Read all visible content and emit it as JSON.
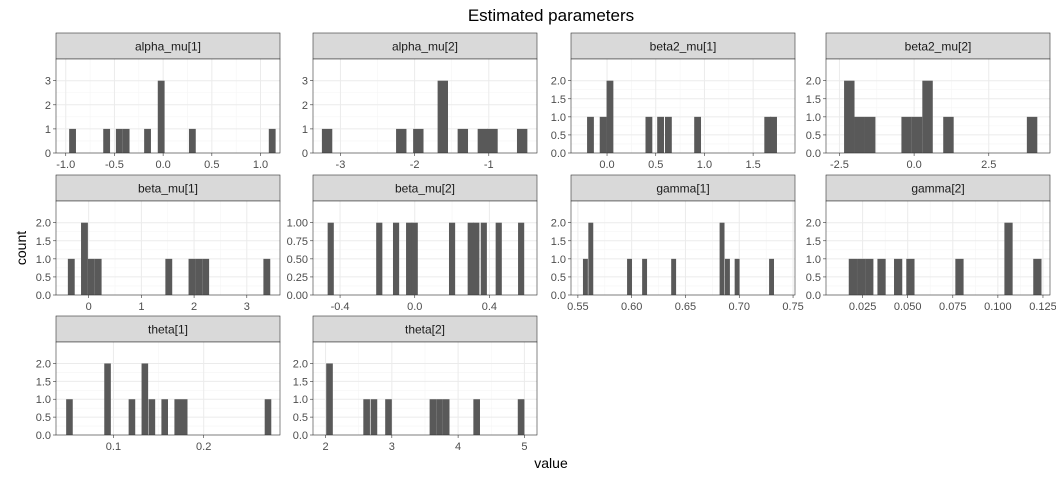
{
  "title": "Estimated parameters",
  "xlabel": "value",
  "ylabel": "count",
  "colors": {
    "bar": "#595959",
    "strip": "#d9d9d9",
    "grid_major": "#ebebeb",
    "grid_minor": "#f5f5f5",
    "border": "#333333"
  },
  "chart_data": [
    {
      "type": "bar",
      "name": "alpha_mu[1]",
      "bin_width": 0.07,
      "x_ticks": [
        "-1.0",
        "-0.5",
        "0.0",
        "0.5",
        "1.0"
      ],
      "xlim": [
        -1.1,
        1.2
      ],
      "y_ticks": [
        "0",
        "1",
        "2",
        "3"
      ],
      "ylim": [
        0,
        3.9
      ],
      "bins": [
        [
          -0.93,
          1
        ],
        [
          -0.58,
          1
        ],
        [
          -0.45,
          1
        ],
        [
          -0.38,
          1
        ],
        [
          -0.16,
          1
        ],
        [
          -0.02,
          3
        ],
        [
          0.3,
          1
        ],
        [
          1.12,
          1
        ]
      ]
    },
    {
      "type": "bar",
      "name": "alpha_mu[2]",
      "bin_width": 0.14,
      "x_ticks": [
        "-3",
        "-2",
        "-1"
      ],
      "xlim": [
        -3.37,
        -0.35
      ],
      "y_ticks": [
        "0",
        "1",
        "2",
        "3"
      ],
      "ylim": [
        0,
        3.9
      ],
      "bins": [
        [
          -3.18,
          1
        ],
        [
          -2.18,
          1
        ],
        [
          -1.95,
          1
        ],
        [
          -1.62,
          3
        ],
        [
          -1.35,
          1
        ],
        [
          -1.08,
          1
        ],
        [
          -0.95,
          1
        ],
        [
          -0.55,
          1
        ]
      ]
    },
    {
      "type": "bar",
      "name": "beta2_mu[1]",
      "bin_width": 0.07,
      "x_ticks": [
        "0.0",
        "0.5",
        "1.0",
        "1.5"
      ],
      "xlim": [
        -0.37,
        1.93
      ],
      "y_ticks": [
        "0.0",
        "0.5",
        "1.0",
        "1.5",
        "2.0"
      ],
      "ylim": [
        0,
        2.6
      ],
      "bins": [
        [
          -0.17,
          1
        ],
        [
          -0.04,
          1
        ],
        [
          0.03,
          2
        ],
        [
          0.43,
          1
        ],
        [
          0.55,
          1
        ],
        [
          0.63,
          1
        ],
        [
          0.93,
          1
        ],
        [
          1.65,
          1
        ],
        [
          1.71,
          1
        ]
      ]
    },
    {
      "type": "bar",
      "name": "beta2_mu[2]",
      "bin_width": 0.35,
      "x_ticks": [
        "-2.5",
        "0.0",
        "2.5"
      ],
      "xlim": [
        -2.95,
        4.55
      ],
      "y_ticks": [
        "0.0",
        "0.5",
        "1.0",
        "1.5",
        "2.0"
      ],
      "ylim": [
        0,
        2.6
      ],
      "bins": [
        [
          -2.17,
          2
        ],
        [
          -1.82,
          1
        ],
        [
          -1.47,
          1
        ],
        [
          -0.25,
          1
        ],
        [
          0.1,
          1
        ],
        [
          0.45,
          2
        ],
        [
          1.15,
          1
        ],
        [
          3.95,
          1
        ]
      ]
    },
    {
      "type": "bar",
      "name": "beta_mu[1]",
      "bin_width": 0.13,
      "x_ticks": [
        "0",
        "1",
        "2",
        "3"
      ],
      "xlim": [
        -0.62,
        3.63
      ],
      "y_ticks": [
        "0.0",
        "0.5",
        "1.0",
        "1.5",
        "2.0"
      ],
      "ylim": [
        0,
        2.6
      ],
      "bins": [
        [
          -0.33,
          1
        ],
        [
          -0.08,
          2
        ],
        [
          0.05,
          1
        ],
        [
          0.18,
          1
        ],
        [
          1.52,
          1
        ],
        [
          1.96,
          1
        ],
        [
          2.09,
          1
        ],
        [
          2.22,
          1
        ],
        [
          3.38,
          1
        ]
      ]
    },
    {
      "type": "bar",
      "name": "beta_mu[2]",
      "bin_width": 0.033,
      "x_ticks": [
        "-0.4",
        "0.0",
        "0.4"
      ],
      "xlim": [
        -0.545,
        0.655
      ],
      "y_ticks": [
        "0.00",
        "0.25",
        "0.50",
        "0.75",
        "1.00"
      ],
      "ylim": [
        0,
        1.3
      ],
      "bins": [
        [
          -0.45,
          1
        ],
        [
          -0.19,
          1
        ],
        [
          -0.1,
          1
        ],
        [
          -0.03,
          1
        ],
        [
          0.0,
          1
        ],
        [
          0.2,
          1
        ],
        [
          0.3,
          1
        ],
        [
          0.33,
          1
        ],
        [
          0.37,
          1
        ],
        [
          0.45,
          1
        ],
        [
          0.57,
          1
        ]
      ]
    },
    {
      "type": "bar",
      "name": "gamma[1]",
      "bin_width": 0.00457,
      "x_ticks": [
        "0.55",
        "0.60",
        "0.65",
        "0.70",
        "0.75"
      ],
      "xlim": [
        0.5436,
        0.7518
      ],
      "y_ticks": [
        "0.0",
        "0.5",
        "1.0",
        "1.5",
        "2.0"
      ],
      "ylim": [
        0,
        2.6
      ],
      "bins": [
        [
          0.557,
          1
        ],
        [
          0.562,
          2
        ],
        [
          0.598,
          1
        ],
        [
          0.612,
          1
        ],
        [
          0.639,
          1
        ],
        [
          0.684,
          2
        ],
        [
          0.689,
          1
        ],
        [
          0.698,
          1
        ],
        [
          0.73,
          1
        ]
      ]
    },
    {
      "type": "bar",
      "name": "gamma[2]",
      "bin_width": 0.00457,
      "x_ticks": [
        "0.025",
        "0.050",
        "0.075",
        "0.100",
        "0.125"
      ],
      "xlim": [
        0.0047,
        0.1289
      ],
      "y_ticks": [
        "0.0",
        "0.5",
        "1.0",
        "1.5",
        "2.0"
      ],
      "ylim": [
        0,
        2.6
      ],
      "bins": [
        [
          0.0196,
          1
        ],
        [
          0.0242,
          1
        ],
        [
          0.0287,
          1
        ],
        [
          0.0355,
          1
        ],
        [
          0.0447,
          1
        ],
        [
          0.0515,
          1
        ],
        [
          0.0787,
          1
        ],
        [
          0.1059,
          2
        ],
        [
          0.1219,
          1
        ]
      ]
    },
    {
      "type": "bar",
      "name": "theta[1]",
      "bin_width": 0.0073,
      "x_ticks": [
        "0.1",
        "0.2"
      ],
      "xlim": [
        0.0364,
        0.2845
      ],
      "y_ticks": [
        "0.0",
        "0.5",
        "1.0",
        "1.5",
        "2.0"
      ],
      "ylim": [
        0,
        2.6
      ],
      "bins": [
        [
          0.0513,
          1
        ],
        [
          0.0935,
          2
        ],
        [
          0.1205,
          1
        ],
        [
          0.1348,
          2
        ],
        [
          0.1426,
          1
        ],
        [
          0.1568,
          1
        ],
        [
          0.1712,
          1
        ],
        [
          0.1784,
          1
        ],
        [
          0.2712,
          1
        ]
      ]
    },
    {
      "type": "bar",
      "name": "theta[2]",
      "bin_width": 0.1,
      "x_ticks": [
        "2",
        "3",
        "4",
        "5"
      ],
      "xlim": [
        1.811,
        5.19
      ],
      "y_ticks": [
        "0.0",
        "0.5",
        "1.0",
        "1.5",
        "2.0"
      ],
      "ylim": [
        0,
        2.6
      ],
      "bins": [
        [
          2.06,
          2
        ],
        [
          2.62,
          1
        ],
        [
          2.73,
          1
        ],
        [
          2.95,
          1
        ],
        [
          3.62,
          1
        ],
        [
          3.72,
          1
        ],
        [
          3.82,
          1
        ],
        [
          4.28,
          1
        ],
        [
          4.95,
          1
        ]
      ]
    }
  ]
}
